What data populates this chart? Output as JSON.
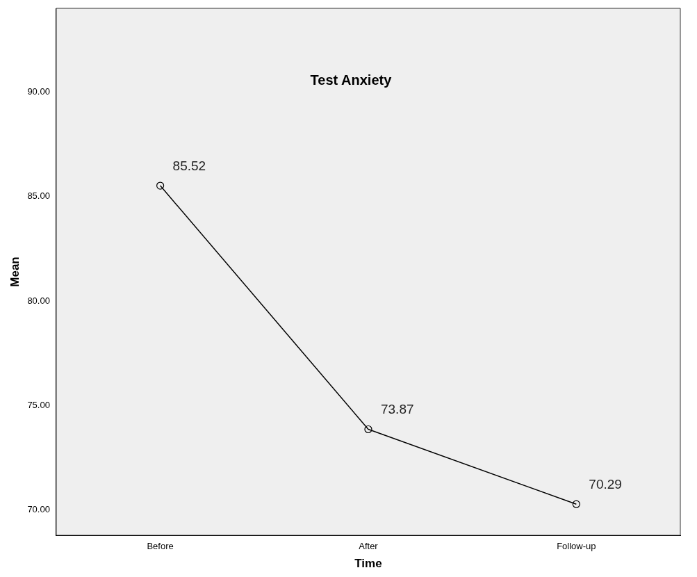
{
  "chart_data": {
    "type": "line",
    "title": "Test Anxiety",
    "xlabel": "Time",
    "ylabel": "Mean",
    "categories": [
      "Before",
      "After",
      "Follow-up"
    ],
    "series": [
      {
        "color": "#000000",
        "values": [
          85.52,
          73.87,
          70.29
        ]
      }
    ],
    "ylim": [
      68.8,
      94
    ],
    "yticks": [
      {
        "value": 70,
        "label": "70.00"
      },
      {
        "value": 75,
        "label": "75.00"
      },
      {
        "value": 80,
        "label": "80.00"
      },
      {
        "value": 85,
        "label": "85.00"
      },
      {
        "value": 90,
        "label": "90.00"
      }
    ],
    "data_labels": true,
    "marker": "circle",
    "line_style": "solid",
    "grid": false,
    "legend": false
  }
}
